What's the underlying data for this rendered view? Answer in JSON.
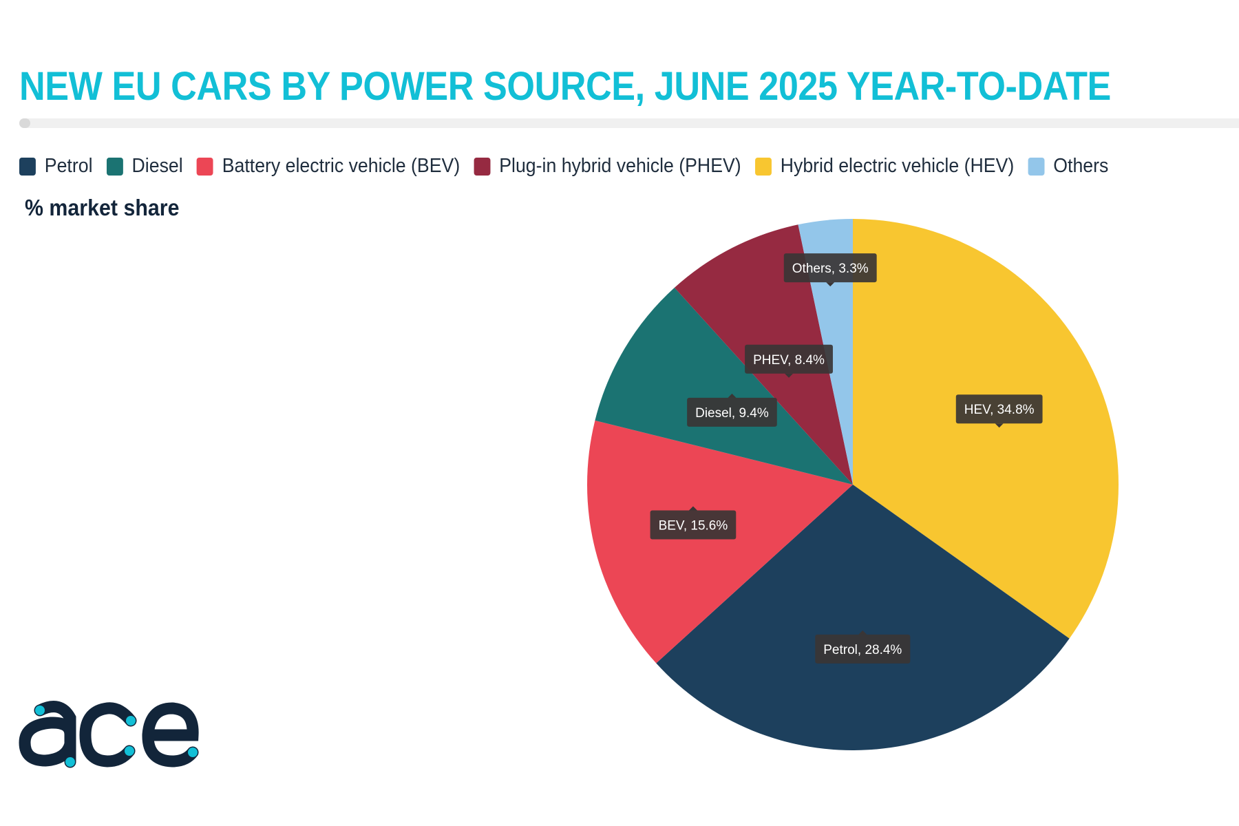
{
  "title": "NEW EU CARS BY POWER SOURCE, JUNE 2025 YEAR-TO-DATE",
  "subtitle": "% market share",
  "legend": [
    {
      "label": "Petrol",
      "color": "#1d405d"
    },
    {
      "label": "Diesel",
      "color": "#1b7372"
    },
    {
      "label": "Battery electric vehicle (BEV)",
      "color": "#ec4655"
    },
    {
      "label": "Plug-in hybrid vehicle (PHEV)",
      "color": "#962a41"
    },
    {
      "label": "Hybrid electric vehicle (HEV)",
      "color": "#f8c630"
    },
    {
      "label": "Others",
      "color": "#93c6ea"
    }
  ],
  "logo": {
    "text": "acea",
    "color": "#12253a",
    "dot_color": "#12bfd6"
  },
  "chart_data": {
    "type": "pie",
    "unit": "%",
    "slices": [
      {
        "name": "HEV",
        "value": 34.8,
        "color": "#f8c630",
        "label": "HEV, 34.8%"
      },
      {
        "name": "Petrol",
        "value": 28.4,
        "color": "#1d405d",
        "label": "Petrol, 28.4%"
      },
      {
        "name": "BEV",
        "value": 15.6,
        "color": "#ec4655",
        "label": "BEV, 15.6%"
      },
      {
        "name": "Diesel",
        "value": 9.4,
        "color": "#1b7372",
        "label": "Diesel, 9.4%"
      },
      {
        "name": "PHEV",
        "value": 8.4,
        "color": "#962a41",
        "label": "PHEV, 8.4%"
      },
      {
        "name": "Others",
        "value": 3.3,
        "color": "#93c6ea",
        "label": "Others, 3.3%"
      }
    ],
    "start_angle": "12 o'clock",
    "direction": "clockwise",
    "legend_position": "top"
  }
}
